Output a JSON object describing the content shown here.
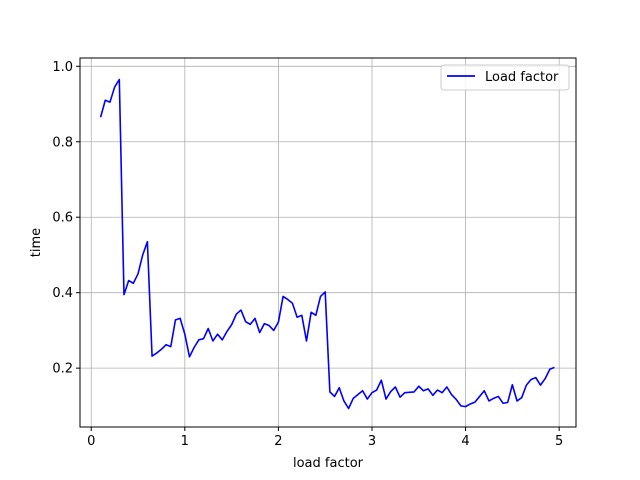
{
  "chart_data": {
    "type": "line",
    "xlabel": "load factor",
    "ylabel": "time",
    "xlim": [
      -0.12,
      5.18
    ],
    "ylim": [
      0.044,
      1.022
    ],
    "xticks": [
      0,
      1,
      2,
      3,
      4,
      5
    ],
    "yticks": [
      0.2,
      0.4,
      0.6,
      0.8,
      1.0
    ],
    "xtick_labels": [
      "0",
      "1",
      "2",
      "3",
      "4",
      "5"
    ],
    "ytick_labels": [
      "0.2",
      "0.4",
      "0.6",
      "0.8",
      "1.0"
    ],
    "grid": true,
    "legend": {
      "position": "top-right"
    },
    "series": [
      {
        "name": "Load factor",
        "color": "#0000ff",
        "points": [
          [
            0.1,
            0.865
          ],
          [
            0.15,
            0.91
          ],
          [
            0.2,
            0.905
          ],
          [
            0.25,
            0.945
          ],
          [
            0.3,
            0.965
          ],
          [
            0.35,
            0.395
          ],
          [
            0.4,
            0.432
          ],
          [
            0.45,
            0.425
          ],
          [
            0.5,
            0.45
          ],
          [
            0.55,
            0.5
          ],
          [
            0.6,
            0.535
          ],
          [
            0.65,
            0.232
          ],
          [
            0.7,
            0.24
          ],
          [
            0.75,
            0.25
          ],
          [
            0.8,
            0.262
          ],
          [
            0.85,
            0.257
          ],
          [
            0.9,
            0.328
          ],
          [
            0.95,
            0.332
          ],
          [
            1.0,
            0.29
          ],
          [
            1.05,
            0.23
          ],
          [
            1.1,
            0.255
          ],
          [
            1.15,
            0.275
          ],
          [
            1.2,
            0.278
          ],
          [
            1.25,
            0.305
          ],
          [
            1.3,
            0.272
          ],
          [
            1.35,
            0.29
          ],
          [
            1.4,
            0.275
          ],
          [
            1.45,
            0.297
          ],
          [
            1.5,
            0.315
          ],
          [
            1.55,
            0.343
          ],
          [
            1.6,
            0.354
          ],
          [
            1.65,
            0.323
          ],
          [
            1.7,
            0.316
          ],
          [
            1.75,
            0.332
          ],
          [
            1.8,
            0.294
          ],
          [
            1.85,
            0.318
          ],
          [
            1.9,
            0.313
          ],
          [
            1.95,
            0.3
          ],
          [
            2.0,
            0.322
          ],
          [
            2.05,
            0.39
          ],
          [
            2.1,
            0.382
          ],
          [
            2.15,
            0.372
          ],
          [
            2.2,
            0.335
          ],
          [
            2.25,
            0.34
          ],
          [
            2.3,
            0.272
          ],
          [
            2.35,
            0.348
          ],
          [
            2.4,
            0.34
          ],
          [
            2.45,
            0.39
          ],
          [
            2.5,
            0.402
          ],
          [
            2.55,
            0.137
          ],
          [
            2.6,
            0.125
          ],
          [
            2.65,
            0.148
          ],
          [
            2.7,
            0.113
          ],
          [
            2.75,
            0.093
          ],
          [
            2.8,
            0.12
          ],
          [
            2.85,
            0.13
          ],
          [
            2.9,
            0.14
          ],
          [
            2.95,
            0.118
          ],
          [
            3.0,
            0.135
          ],
          [
            3.05,
            0.142
          ],
          [
            3.1,
            0.168
          ],
          [
            3.15,
            0.118
          ],
          [
            3.2,
            0.138
          ],
          [
            3.25,
            0.15
          ],
          [
            3.3,
            0.123
          ],
          [
            3.35,
            0.135
          ],
          [
            3.4,
            0.136
          ],
          [
            3.45,
            0.137
          ],
          [
            3.5,
            0.152
          ],
          [
            3.55,
            0.14
          ],
          [
            3.6,
            0.145
          ],
          [
            3.65,
            0.128
          ],
          [
            3.7,
            0.142
          ],
          [
            3.75,
            0.135
          ],
          [
            3.8,
            0.15
          ],
          [
            3.85,
            0.13
          ],
          [
            3.9,
            0.117
          ],
          [
            3.95,
            0.1
          ],
          [
            4.0,
            0.098
          ],
          [
            4.05,
            0.105
          ],
          [
            4.1,
            0.11
          ],
          [
            4.15,
            0.125
          ],
          [
            4.2,
            0.14
          ],
          [
            4.25,
            0.113
          ],
          [
            4.3,
            0.12
          ],
          [
            4.35,
            0.125
          ],
          [
            4.4,
            0.107
          ],
          [
            4.45,
            0.109
          ],
          [
            4.5,
            0.156
          ],
          [
            4.55,
            0.113
          ],
          [
            4.6,
            0.122
          ],
          [
            4.65,
            0.155
          ],
          [
            4.7,
            0.17
          ],
          [
            4.75,
            0.175
          ],
          [
            4.8,
            0.155
          ],
          [
            4.85,
            0.172
          ],
          [
            4.9,
            0.197
          ],
          [
            4.95,
            0.202
          ]
        ]
      }
    ]
  }
}
